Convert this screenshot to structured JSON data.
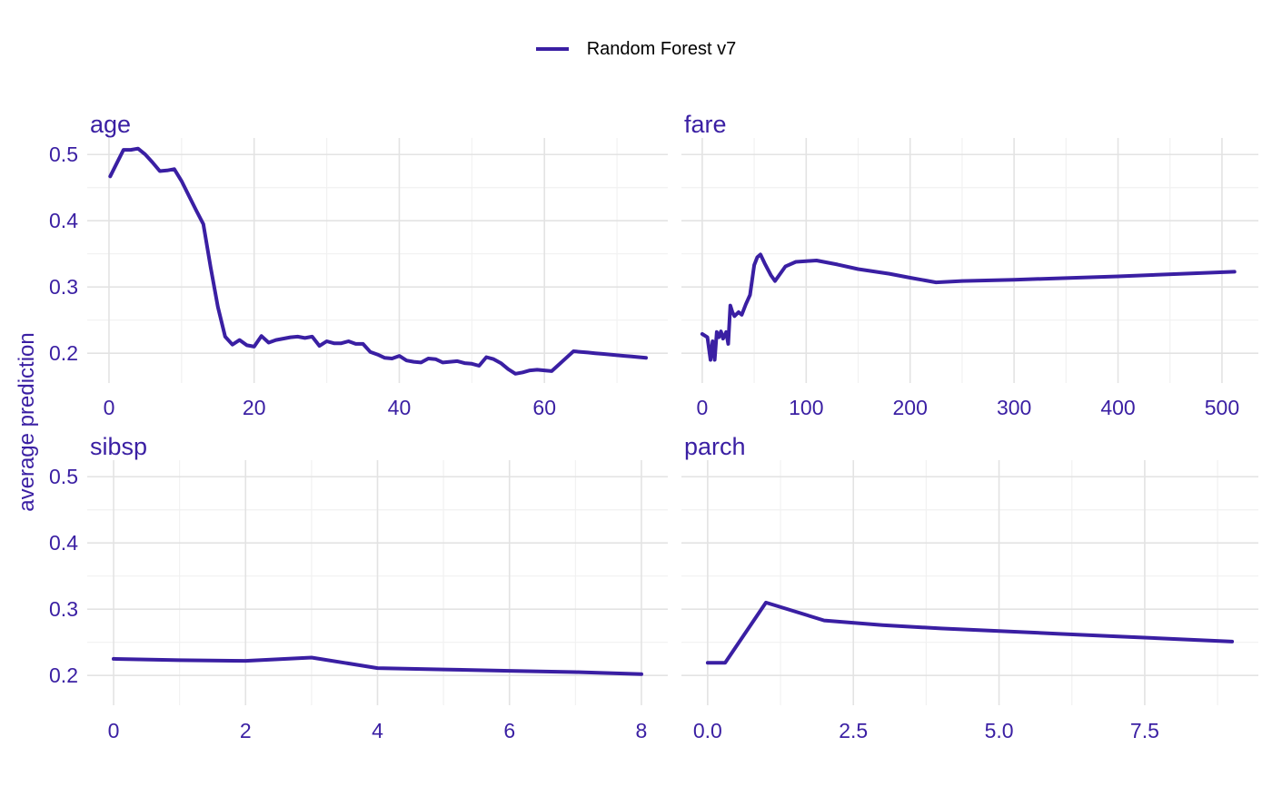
{
  "legend": {
    "label": "Random Forest v7"
  },
  "ylabel": "average prediction",
  "colors": {
    "line": "#3A1FA3",
    "text": "#3A1FA3",
    "grid_major": "#e3e3e3",
    "grid_minor": "#f1f1f1"
  },
  "chart_data": [
    {
      "type": "line",
      "title": "age",
      "xticks": [
        0,
        20,
        40,
        60
      ],
      "xtick_labels": [
        "0",
        "20",
        "40",
        "60"
      ],
      "yticks": [
        0.2,
        0.3,
        0.4,
        0.5
      ],
      "ytick_labels": [
        "0.2",
        "0.3",
        "0.4",
        "0.5"
      ],
      "xlim": [
        -3,
        77
      ],
      "ylim": [
        0.155,
        0.525
      ],
      "grid": true,
      "x": [
        0.17,
        2,
        3,
        4,
        5,
        6,
        7,
        8,
        9,
        10,
        11,
        12,
        13,
        14,
        15,
        16,
        17,
        18,
        19,
        20,
        21,
        22,
        23,
        24,
        25,
        26,
        27,
        28,
        29,
        30,
        31,
        32,
        33,
        34,
        35,
        36,
        37,
        38,
        39,
        40,
        41,
        42,
        43,
        44,
        45,
        46,
        47,
        48,
        49,
        50,
        51,
        52,
        53,
        54,
        55,
        56,
        57,
        58,
        59,
        60,
        61,
        62,
        63,
        64,
        65,
        66,
        67,
        68,
        69,
        70,
        71,
        72,
        73,
        74
      ],
      "y": [
        0.467,
        0.507,
        0.507,
        0.509,
        0.5,
        0.488,
        0.475,
        0.476,
        0.478,
        0.46,
        0.438,
        0.416,
        0.395,
        0.33,
        0.27,
        0.225,
        0.213,
        0.22,
        0.212,
        0.21,
        0.226,
        0.216,
        0.22,
        0.222,
        0.224,
        0.225,
        0.223,
        0.225,
        0.211,
        0.218,
        0.215,
        0.215,
        0.218,
        0.214,
        0.214,
        0.202,
        0.198,
        0.193,
        0.192,
        0.196,
        0.189,
        0.187,
        0.186,
        0.192,
        0.191,
        0.186,
        0.187,
        0.188,
        0.185,
        0.184,
        0.181,
        0.194,
        0.191,
        0.185,
        0.176,
        0.169,
        0.171,
        0.174,
        0.175,
        0.174,
        0.173,
        0.183,
        0.193,
        0.203,
        0.202,
        0.201,
        0.2,
        0.199,
        0.198,
        0.197,
        0.196,
        0.195,
        0.194,
        0.193
      ]
    },
    {
      "type": "line",
      "title": "fare",
      "xticks": [
        0,
        100,
        200,
        300,
        400,
        500
      ],
      "xtick_labels": [
        "0",
        "100",
        "200",
        "300",
        "400",
        "500"
      ],
      "yticks": [
        0.2,
        0.3,
        0.4,
        0.5
      ],
      "ytick_labels": [
        "0.2",
        "0.3",
        "0.4",
        "0.5"
      ],
      "xlim": [
        -20,
        535
      ],
      "ylim": [
        0.155,
        0.525
      ],
      "grid": true,
      "x": [
        0,
        5,
        8,
        10,
        12,
        14,
        16,
        18,
        20,
        23,
        25,
        27,
        29,
        31,
        35,
        38,
        42,
        46,
        50,
        53,
        56,
        60,
        66,
        70,
        75,
        80,
        90,
        100,
        110,
        130,
        150,
        180,
        200,
        225,
        250,
        300,
        400,
        512
      ],
      "y": [
        0.229,
        0.224,
        0.19,
        0.218,
        0.19,
        0.232,
        0.224,
        0.233,
        0.222,
        0.232,
        0.214,
        0.272,
        0.262,
        0.256,
        0.262,
        0.258,
        0.274,
        0.288,
        0.333,
        0.345,
        0.349,
        0.336,
        0.318,
        0.309,
        0.32,
        0.331,
        0.338,
        0.339,
        0.34,
        0.334,
        0.327,
        0.32,
        0.314,
        0.307,
        0.309,
        0.311,
        0.316,
        0.323
      ]
    },
    {
      "type": "line",
      "title": "sibsp",
      "xticks": [
        0,
        2,
        4,
        6,
        8
      ],
      "xtick_labels": [
        "0",
        "2",
        "4",
        "6",
        "8"
      ],
      "yticks": [
        0.2,
        0.3,
        0.4,
        0.5
      ],
      "ytick_labels": [
        "0.2",
        "0.3",
        "0.4",
        "0.5"
      ],
      "xlim": [
        -0.4,
        8.4
      ],
      "ylim": [
        0.155,
        0.525
      ],
      "grid": true,
      "x": [
        0,
        1,
        2,
        3,
        4,
        5,
        6,
        7,
        8
      ],
      "y": [
        0.225,
        0.223,
        0.222,
        0.227,
        0.211,
        0.209,
        0.207,
        0.205,
        0.202
      ]
    },
    {
      "type": "line",
      "title": "parch",
      "xticks": [
        0,
        2.5,
        5,
        7.5
      ],
      "xtick_labels": [
        "0.0",
        "2.5",
        "5.0",
        "7.5"
      ],
      "yticks": [
        0.2,
        0.3,
        0.4,
        0.5
      ],
      "ytick_labels": [
        "0.2",
        "0.3",
        "0.4",
        "0.5"
      ],
      "xlim": [
        -0.45,
        9.45
      ],
      "ylim": [
        0.155,
        0.525
      ],
      "grid": true,
      "x": [
        0,
        0.3,
        1,
        2,
        3,
        4,
        5,
        6,
        7,
        8,
        9
      ],
      "y": [
        0.219,
        0.219,
        0.31,
        0.283,
        0.276,
        0.271,
        0.267,
        0.263,
        0.259,
        0.255,
        0.251
      ]
    }
  ]
}
